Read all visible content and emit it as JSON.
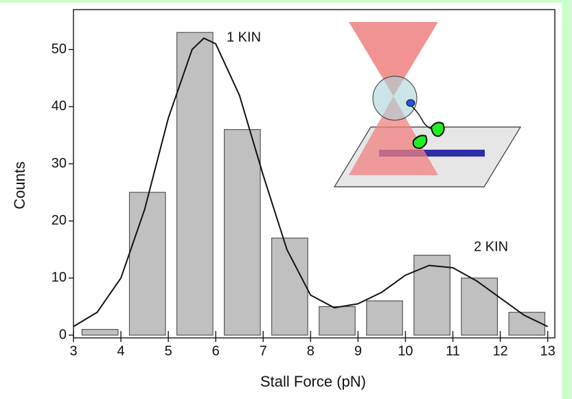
{
  "chart_data": {
    "type": "histogram",
    "xlabel": "Stall Force (pN)",
    "ylabel": "Counts",
    "bins": [
      3,
      4,
      5,
      6,
      7,
      8,
      9,
      10,
      11,
      12,
      13
    ],
    "counts": [
      1,
      25,
      53,
      36,
      17,
      5,
      6,
      14,
      10,
      4
    ],
    "color": "#c0c0c0",
    "curve": {
      "color": "#111111",
      "x": [
        3,
        3.5,
        4,
        4.5,
        5,
        5.5,
        5.75,
        6,
        6.5,
        7,
        7.5,
        8,
        8.5,
        9,
        9.5,
        10,
        10.5,
        11,
        11.5,
        12,
        12.5,
        13
      ],
      "values": [
        1.5,
        4,
        10,
        22,
        38,
        50,
        52,
        51,
        42,
        28,
        15,
        7,
        4.8,
        5.5,
        7.5,
        10.5,
        12.2,
        11.8,
        9.5,
        6.5,
        3.5,
        1.5
      ]
    },
    "annotations": [
      "1 KIN",
      "2 KIN"
    ],
    "xlim": [
      3,
      13.15
    ],
    "ylim": [
      0,
      57
    ],
    "xticks": [
      3,
      4,
      5,
      6,
      7,
      8,
      9,
      10,
      11,
      12,
      13
    ],
    "yticks": [
      0,
      10,
      20,
      30,
      40,
      50
    ]
  }
}
